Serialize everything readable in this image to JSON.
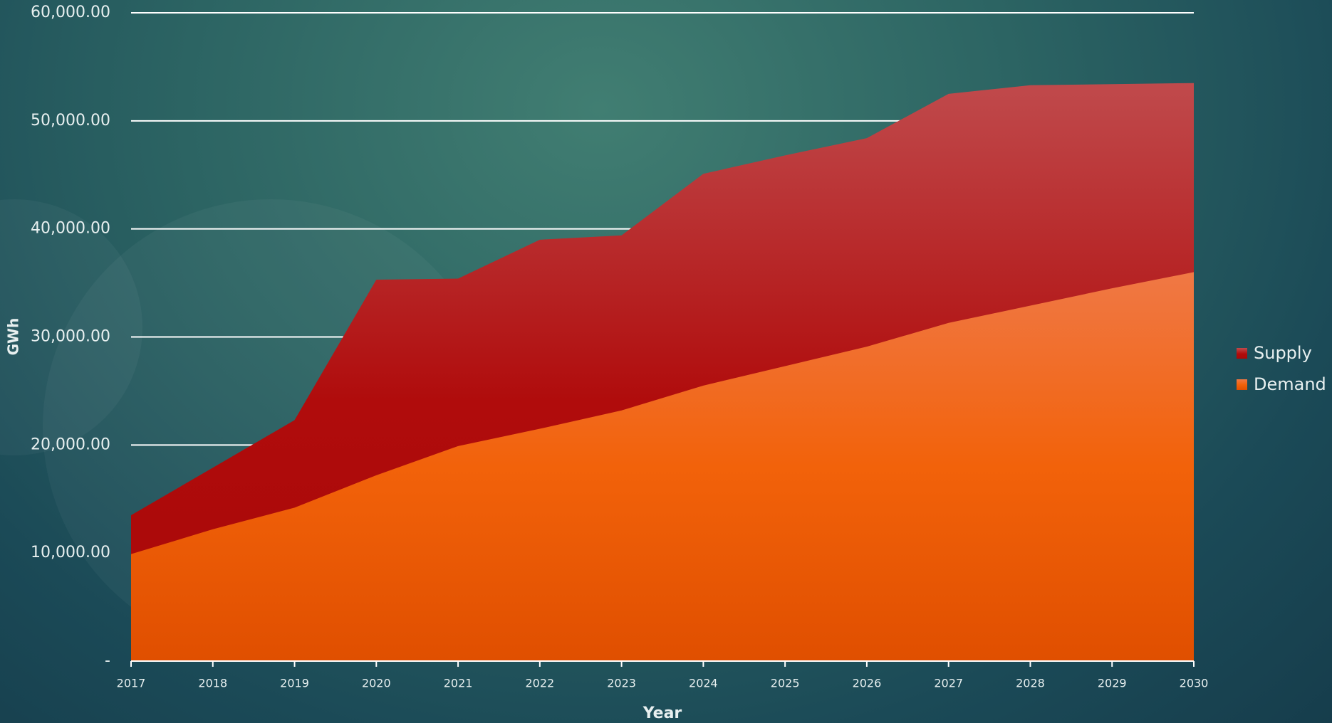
{
  "chart_data": {
    "type": "area",
    "y_label": "GWh",
    "x_label": "Year",
    "categories": [
      "2017",
      "2018",
      "2019",
      "2020",
      "2021",
      "2022",
      "2023",
      "2024",
      "2025",
      "2026",
      "2027",
      "2028",
      "2029",
      "2030"
    ],
    "series": [
      {
        "name": "Supply",
        "color": "#b81418",
        "values": [
          13500,
          17900,
          22300,
          35300,
          35400,
          39000,
          39400,
          45100,
          46800,
          48400,
          52500,
          53300,
          53400,
          53500
        ]
      },
      {
        "name": "Demand",
        "color": "#f26a1b",
        "values": [
          9900,
          12200,
          14200,
          17200,
          19900,
          21500,
          23200,
          25500,
          27300,
          29100,
          31300,
          32900,
          34500,
          36000
        ]
      }
    ],
    "ylim": [
      0,
      60000
    ],
    "yticks": [
      {
        "value": 0,
        "label": "-"
      },
      {
        "value": 10000,
        "label": "10,000.00"
      },
      {
        "value": 20000,
        "label": "20,000.00"
      },
      {
        "value": 30000,
        "label": "30,000.00"
      },
      {
        "value": 40000,
        "label": "40,000.00"
      },
      {
        "value": 50000,
        "label": "50,000.00"
      },
      {
        "value": 60000,
        "label": "60,000.00"
      }
    ],
    "grid": true,
    "legend": "right"
  }
}
